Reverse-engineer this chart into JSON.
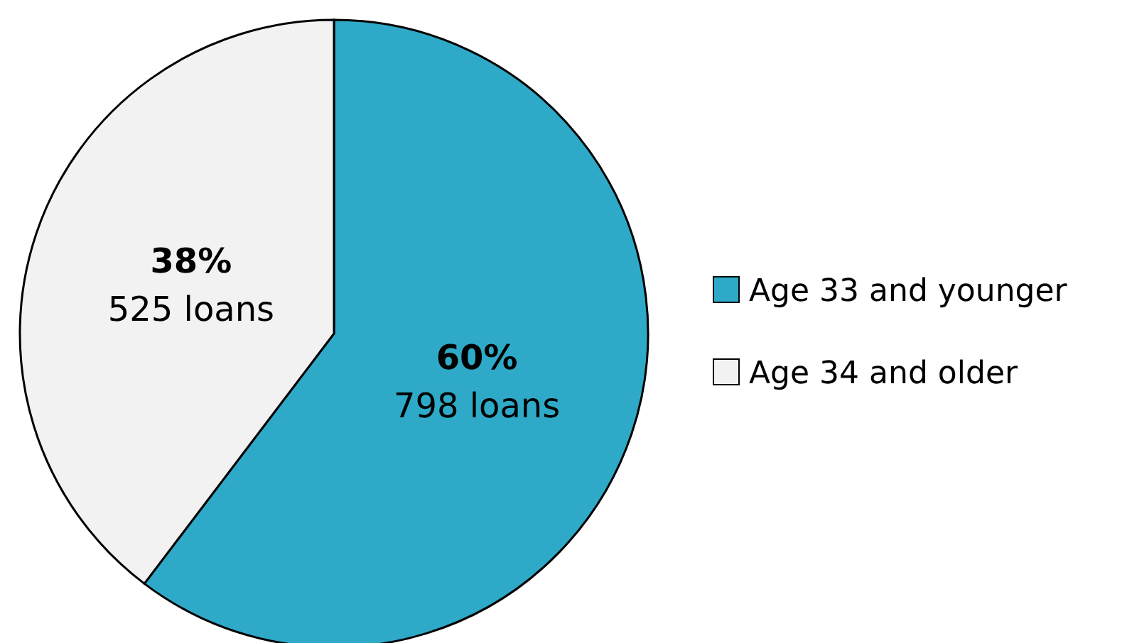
{
  "chart_data": {
    "type": "pie",
    "categories": [
      "Age 33 and younger",
      "Age 34 and older"
    ],
    "values": [
      798,
      525
    ],
    "colors": [
      "#2eaac8",
      "#f2f2f2"
    ],
    "value_labels": [
      "60%\n798 loans",
      "38%\n525 loans"
    ],
    "legend": "right"
  }
}
